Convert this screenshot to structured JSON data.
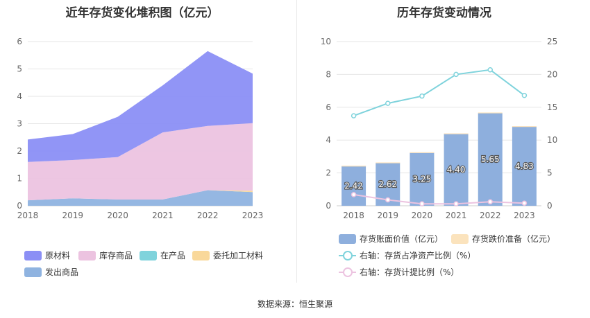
{
  "left_title": "近年存货变化堆积图（亿元）",
  "right_title": "历年存货变动情况",
  "source": "数据来源：恒生聚源",
  "chart_data": [
    {
      "type": "area",
      "stacked": true,
      "title": "近年存货变化堆积图（亿元）",
      "x": [
        "2018",
        "2019",
        "2020",
        "2021",
        "2022",
        "2023"
      ],
      "ylim": [
        0,
        6
      ],
      "yticks": [
        "0",
        "1",
        "2",
        "3",
        "4",
        "5",
        "6"
      ],
      "grid": true,
      "legend_position": "bottom",
      "series": [
        {
          "name": "发出商品",
          "color": "#8fb3e0",
          "values": [
            0.2,
            0.27,
            0.23,
            0.23,
            0.57,
            0.5
          ]
        },
        {
          "name": "委托加工材料",
          "color": "#f9d89a",
          "values": [
            0.0,
            0.0,
            0.0,
            0.0,
            0.0,
            0.05
          ]
        },
        {
          "name": "在产品",
          "color": "#7fd3dc",
          "values": [
            0.0,
            0.0,
            0.0,
            0.0,
            0.0,
            0.0
          ]
        },
        {
          "name": "库存商品",
          "color": "#ecc3e0",
          "values": [
            1.4,
            1.4,
            1.55,
            2.45,
            2.35,
            2.47
          ]
        },
        {
          "name": "原材料",
          "color": "#8b8ff5",
          "values": [
            0.82,
            0.95,
            1.47,
            1.72,
            2.73,
            1.81
          ]
        }
      ],
      "legend_order": [
        "原材料",
        "库存商品",
        "在产品",
        "委托加工材料",
        "发出商品"
      ]
    },
    {
      "type": "bar",
      "title": "历年存货变动情况",
      "categories": [
        "2018",
        "2019",
        "2020",
        "2021",
        "2022",
        "2023"
      ],
      "ylim": [
        0,
        10
      ],
      "yticks": [
        "0",
        "2",
        "4",
        "6",
        "8",
        "10"
      ],
      "y2lim": [
        0,
        25
      ],
      "y2ticks": [
        "0",
        "5",
        "10",
        "15",
        "20",
        "25"
      ],
      "grid": true,
      "legend_position": "bottom",
      "series": [
        {
          "name": "存货账面价值（亿元）",
          "kind": "bar",
          "axis": "left",
          "color": "#8eafdd",
          "values": [
            2.42,
            2.62,
            3.25,
            4.4,
            5.65,
            4.83
          ],
          "labels": [
            "2.42",
            "2.62",
            "3.25",
            "4.40",
            "5.65",
            "4.83"
          ]
        },
        {
          "name": "存货跌价准备（亿元）",
          "kind": "bar",
          "axis": "left",
          "color": "#fbe3bd",
          "values": [
            0.02,
            0.02,
            0.01,
            0.01,
            0.03,
            0.02
          ]
        },
        {
          "name": "右轴：存货占净资产比例（%）",
          "kind": "line",
          "axis": "right",
          "color": "#7fd3dc",
          "values": [
            13.7,
            15.6,
            16.7,
            20.0,
            20.7,
            16.8
          ]
        },
        {
          "name": "右轴：存货计提比例（%）",
          "kind": "line",
          "axis": "right",
          "color": "#ecc3e0",
          "values": [
            1.7,
            0.9,
            0.3,
            0.3,
            0.6,
            0.4
          ]
        }
      ]
    }
  ]
}
